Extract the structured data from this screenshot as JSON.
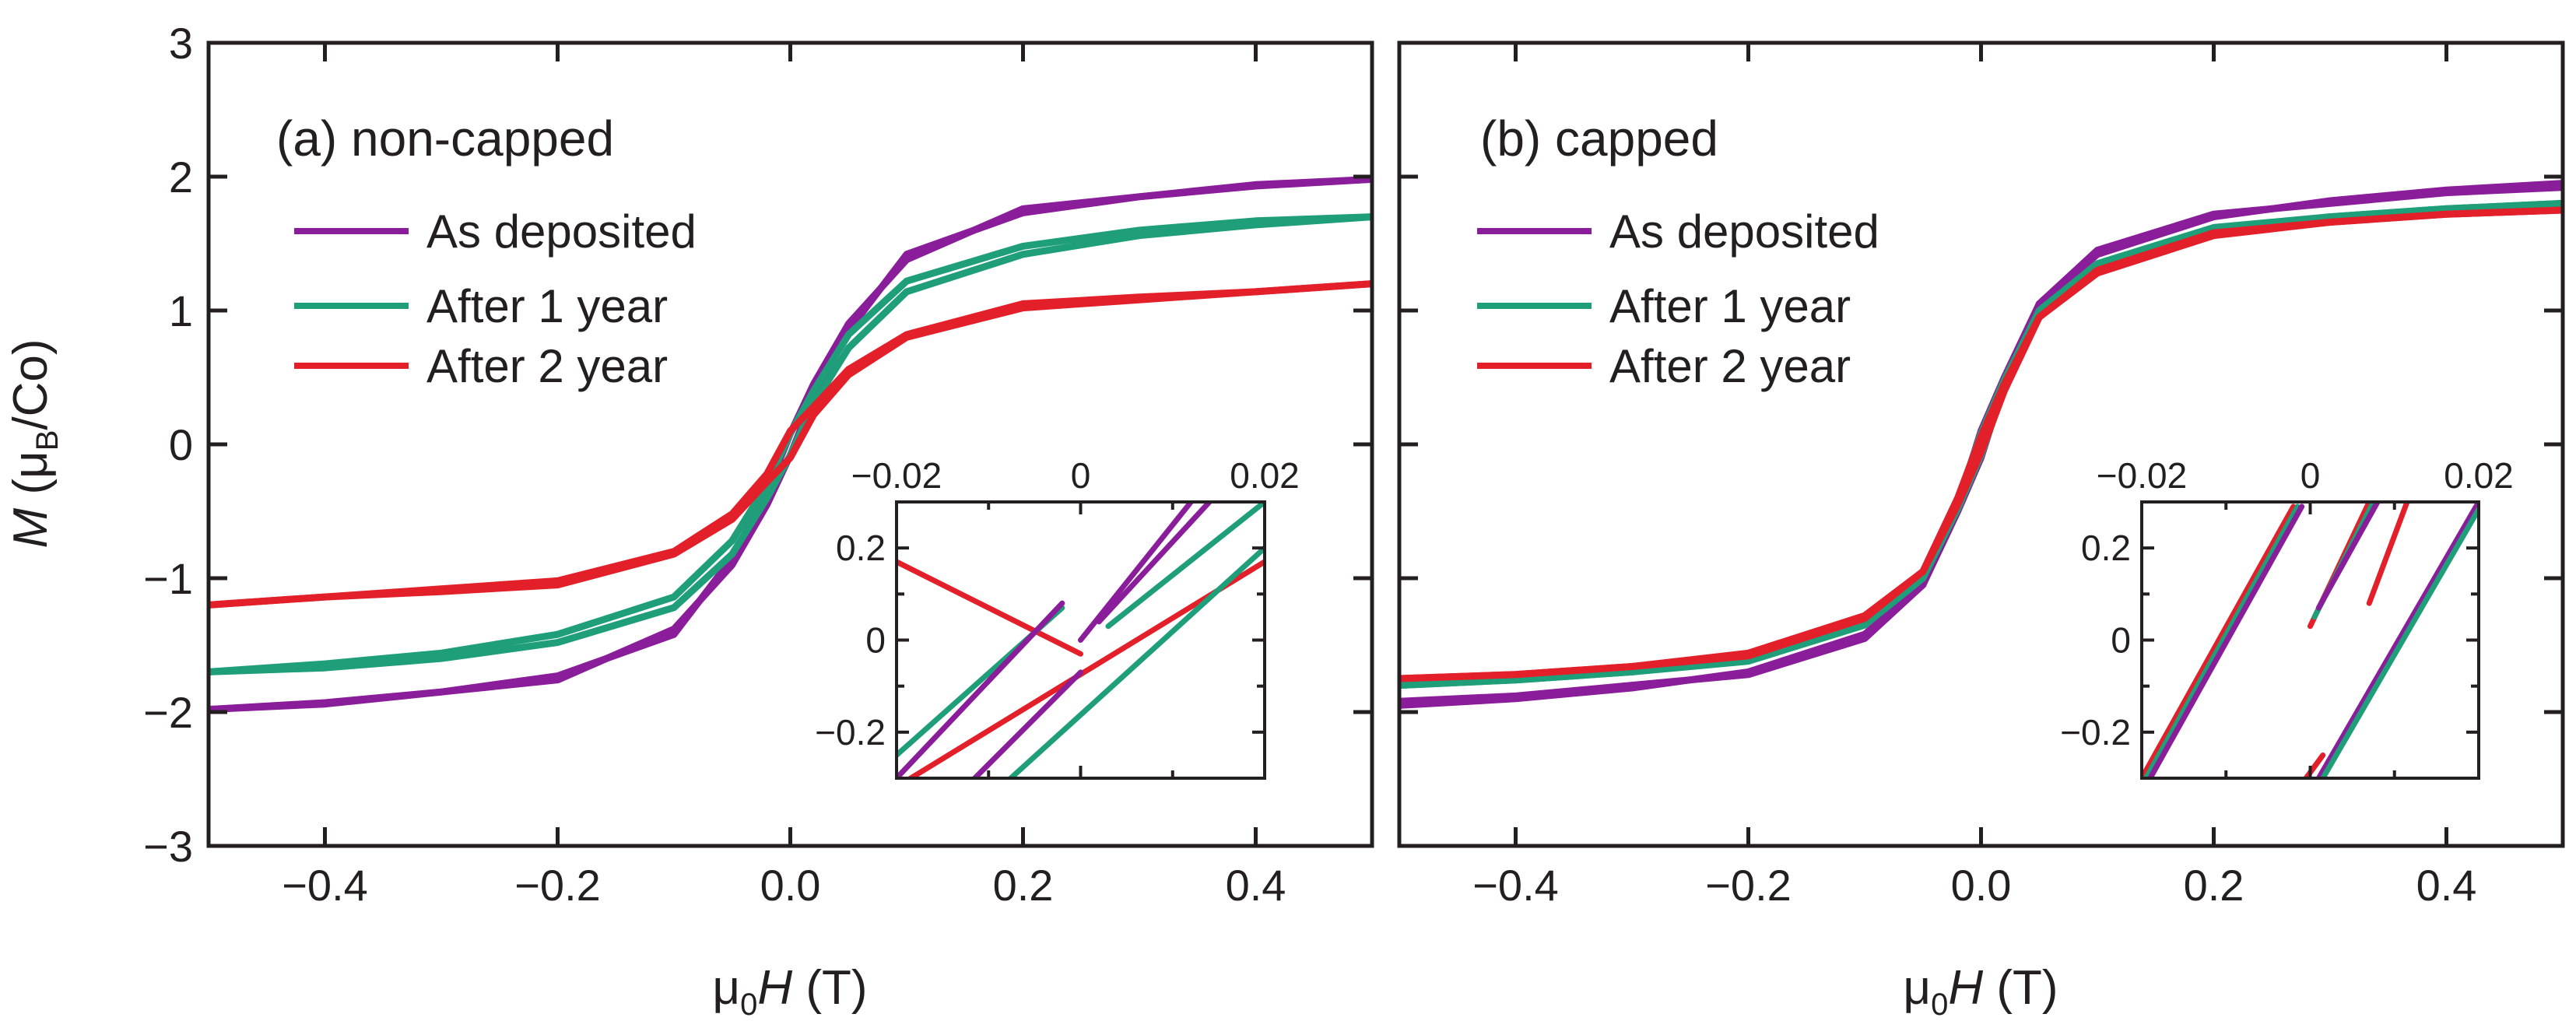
{
  "colors": {
    "as_deposited": "#8a1d99",
    "after_1_year": "#1f9e7a",
    "after_2_year": "#e3202a",
    "axis": "#231f20"
  },
  "chart_data": [
    {
      "id": "a",
      "type": "line",
      "title": "(a) non-capped",
      "xlabel_prefix": "μ",
      "xlabel_sub": "0",
      "xlabel_italic": "H",
      "xlabel_suffix": " (T)",
      "ylabel_italic": "M",
      "ylabel_rest": " (μ",
      "ylabel_sub": "B",
      "ylabel_suffix": "/Co)",
      "xlim": [
        -0.5,
        0.5
      ],
      "ylim": [
        -3,
        3
      ],
      "xticks": [
        -0.4,
        -0.2,
        0.0,
        0.2,
        0.4
      ],
      "xtick_labels": [
        "−0.4",
        "−0.2",
        "0.0",
        "0.2",
        "0.4"
      ],
      "yticks": [
        3,
        2,
        1,
        0,
        -1,
        -2,
        -3
      ],
      "ytick_labels": [
        "3",
        "2",
        "1",
        "0",
        "−1",
        "−2",
        "−3"
      ],
      "legend": [
        "As deposited",
        "After 1 year",
        "After 2 year"
      ],
      "series": [
        {
          "name": "As deposited",
          "color_key": "as_deposited",
          "x": [
            -0.5,
            -0.4,
            -0.3,
            -0.2,
            -0.1,
            -0.05,
            -0.02,
            0,
            0.02,
            0.05,
            0.1,
            0.2,
            0.3,
            0.4,
            0.5
          ],
          "y_up": [
            -1.98,
            -1.93,
            -1.85,
            -1.76,
            -1.38,
            -0.9,
            -0.45,
            -0.08,
            0.35,
            0.85,
            1.42,
            1.73,
            1.85,
            1.94,
            1.98
          ],
          "y_down": [
            -1.98,
            -1.94,
            -1.85,
            -1.73,
            -1.42,
            -0.85,
            -0.35,
            0.08,
            0.45,
            0.9,
            1.38,
            1.76,
            1.85,
            1.93,
            1.98
          ]
        },
        {
          "name": "After 1 year",
          "color_key": "after_1_year",
          "x": [
            -0.5,
            -0.4,
            -0.3,
            -0.2,
            -0.1,
            -0.05,
            -0.02,
            0,
            0.02,
            0.05,
            0.1,
            0.2,
            0.3,
            0.4,
            0.5
          ],
          "y_up": [
            -1.7,
            -1.67,
            -1.6,
            -1.48,
            -1.22,
            -0.82,
            -0.4,
            -0.08,
            0.3,
            0.72,
            1.14,
            1.42,
            1.56,
            1.64,
            1.7
          ],
          "y_down": [
            -1.7,
            -1.64,
            -1.56,
            -1.42,
            -1.14,
            -0.72,
            -0.3,
            0.08,
            0.4,
            0.82,
            1.22,
            1.48,
            1.6,
            1.67,
            1.7
          ]
        },
        {
          "name": "After 2 year",
          "color_key": "after_2_year",
          "x": [
            -0.5,
            -0.4,
            -0.3,
            -0.2,
            -0.1,
            -0.05,
            -0.02,
            0,
            0.02,
            0.05,
            0.1,
            0.2,
            0.3,
            0.4,
            0.5
          ],
          "y_up": [
            -1.2,
            -1.14,
            -1.1,
            -1.05,
            -0.82,
            -0.56,
            -0.28,
            -0.1,
            0.22,
            0.52,
            0.8,
            1.02,
            1.08,
            1.14,
            1.2
          ],
          "y_down": [
            -1.2,
            -1.14,
            -1.08,
            -1.02,
            -0.8,
            -0.52,
            -0.22,
            0.1,
            0.28,
            0.56,
            0.82,
            1.05,
            1.1,
            1.14,
            1.2
          ]
        }
      ],
      "inset": {
        "xlim": [
          -0.02,
          0.02
        ],
        "ylim": [
          -0.3,
          0.3
        ],
        "xticks": [
          -0.02,
          0,
          0.02
        ],
        "xtick_labels": [
          "−0.02",
          "0",
          "0.02"
        ],
        "yticks": [
          0.2,
          0,
          -0.2
        ],
        "ytick_labels": [
          "0.2",
          "0",
          "−0.2"
        ],
        "segments": [
          {
            "color_key": "after_2_year",
            "x": [
              -0.02,
              0.0
            ],
            "y": [
              0.17,
              -0.03
            ]
          },
          {
            "color_key": "after_2_year",
            "x": [
              -0.025,
              0.02
            ],
            "y": [
              -0.38,
              0.17
            ]
          },
          {
            "color_key": "after_1_year",
            "x": [
              -0.02,
              -0.002
            ],
            "y": [
              -0.25,
              0.07
            ]
          },
          {
            "color_key": "after_1_year",
            "x": [
              -0.012,
              0.02
            ],
            "y": [
              -0.38,
              0.2
            ]
          },
          {
            "color_key": "after_1_year",
            "x": [
              0.003,
              0.02
            ],
            "y": [
              0.03,
              0.3
            ]
          },
          {
            "color_key": "as_deposited",
            "x": [
              -0.02,
              -0.002
            ],
            "y": [
              -0.3,
              0.08
            ]
          },
          {
            "color_key": "as_deposited",
            "x": [
              -0.012,
              0.0
            ],
            "y": [
              -0.31,
              -0.07
            ]
          },
          {
            "color_key": "as_deposited",
            "x": [
              0.0,
              0.012
            ],
            "y": [
              0.0,
              0.3
            ]
          },
          {
            "color_key": "as_deposited",
            "x": [
              0.002,
              0.014
            ],
            "y": [
              0.04,
              0.3
            ]
          }
        ]
      }
    },
    {
      "id": "b",
      "type": "line",
      "title": "(b) capped",
      "xlabel_prefix": "μ",
      "xlabel_sub": "0",
      "xlabel_italic": "H",
      "xlabel_suffix": " (T)",
      "xlim": [
        -0.5,
        0.5
      ],
      "ylim": [
        -3,
        3
      ],
      "xticks": [
        -0.4,
        -0.2,
        0.0,
        0.2,
        0.4
      ],
      "xtick_labels": [
        "−0.4",
        "−0.2",
        "0.0",
        "0.2",
        "0.4"
      ],
      "yticks": [
        3,
        2,
        1,
        0,
        -1,
        -2,
        -3
      ],
      "ytick_labels": [],
      "legend": [
        "As deposited",
        "After 1 year",
        "After 2 year"
      ],
      "series": [
        {
          "name": "As deposited",
          "color_key": "as_deposited",
          "x": [
            -0.5,
            -0.4,
            -0.3,
            -0.2,
            -0.1,
            -0.05,
            -0.02,
            0,
            0.02,
            0.05,
            0.1,
            0.2,
            0.3,
            0.4,
            0.5
          ],
          "y_up": [
            -1.92,
            -1.88,
            -1.8,
            -1.72,
            -1.45,
            -1.05,
            -0.5,
            -0.1,
            0.45,
            1.05,
            1.42,
            1.7,
            1.82,
            1.9,
            1.95
          ],
          "y_down": [
            -1.95,
            -1.9,
            -1.82,
            -1.7,
            -1.42,
            -1.05,
            -0.45,
            0.1,
            0.5,
            1.05,
            1.45,
            1.72,
            1.8,
            1.88,
            1.92
          ]
        },
        {
          "name": "After 1 year",
          "color_key": "after_1_year",
          "x": [
            -0.5,
            -0.4,
            -0.3,
            -0.2,
            -0.1,
            -0.05,
            -0.02,
            0,
            0.02,
            0.05,
            0.1,
            0.2,
            0.3,
            0.4,
            0.5
          ],
          "y_up": [
            -1.8,
            -1.76,
            -1.7,
            -1.62,
            -1.35,
            -1.0,
            -0.48,
            -0.08,
            0.42,
            0.98,
            1.32,
            1.6,
            1.7,
            1.76,
            1.8
          ],
          "y_down": [
            -1.8,
            -1.76,
            -1.7,
            -1.6,
            -1.32,
            -0.98,
            -0.42,
            0.08,
            0.48,
            1.0,
            1.35,
            1.62,
            1.7,
            1.76,
            1.8
          ]
        },
        {
          "name": "After 2 year",
          "color_key": "after_2_year",
          "x": [
            -0.5,
            -0.4,
            -0.3,
            -0.2,
            -0.1,
            -0.05,
            -0.02,
            0,
            0.02,
            0.05,
            0.1,
            0.2,
            0.3,
            0.4,
            0.5
          ],
          "y_up": [
            -1.75,
            -1.72,
            -1.66,
            -1.58,
            -1.3,
            -0.95,
            -0.45,
            -0.06,
            0.4,
            0.95,
            1.28,
            1.56,
            1.66,
            1.72,
            1.75
          ],
          "y_down": [
            -1.75,
            -1.72,
            -1.66,
            -1.56,
            -1.28,
            -0.95,
            -0.4,
            0.06,
            0.45,
            0.95,
            1.3,
            1.58,
            1.66,
            1.72,
            1.75
          ]
        }
      ],
      "inset": {
        "xlim": [
          -0.02,
          0.02
        ],
        "ylim": [
          -0.3,
          0.3
        ],
        "xticks": [
          -0.02,
          0,
          0.02
        ],
        "xtick_labels": [
          "−0.02",
          "0",
          "0.02"
        ],
        "yticks": [
          0.2,
          0,
          -0.2
        ],
        "ytick_labels": [
          "0.2",
          "0",
          "−0.2"
        ],
        "segments": [
          {
            "color_key": "after_2_year",
            "x": [
              -0.02,
              -0.002
            ],
            "y": [
              -0.3,
              0.29
            ]
          },
          {
            "color_key": "after_1_year",
            "x": [
              -0.0195,
              -0.0015
            ],
            "y": [
              -0.3,
              0.29
            ]
          },
          {
            "color_key": "as_deposited",
            "x": [
              -0.019,
              -0.001
            ],
            "y": [
              -0.3,
              0.29
            ]
          },
          {
            "color_key": "after_2_year",
            "x": [
              0.0,
              0.007
            ],
            "y": [
              0.03,
              0.3
            ]
          },
          {
            "color_key": "after_1_year",
            "x": [
              0.0005,
              0.0075
            ],
            "y": [
              0.05,
              0.3
            ]
          },
          {
            "color_key": "as_deposited",
            "x": [
              0.001,
              0.008
            ],
            "y": [
              0.07,
              0.3
            ]
          },
          {
            "color_key": "after_2_year",
            "x": [
              0.007,
              0.0115
            ],
            "y": [
              0.08,
              0.3
            ]
          },
          {
            "color_key": "after_2_year",
            "x": [
              -0.0005,
              0.0015
            ],
            "y": [
              -0.3,
              -0.25
            ]
          },
          {
            "color_key": "as_deposited",
            "x": [
              0.001,
              0.02
            ],
            "y": [
              -0.3,
              0.3
            ]
          },
          {
            "color_key": "after_1_year",
            "x": [
              0.0015,
              0.0205
            ],
            "y": [
              -0.3,
              0.3
            ]
          }
        ]
      }
    }
  ]
}
